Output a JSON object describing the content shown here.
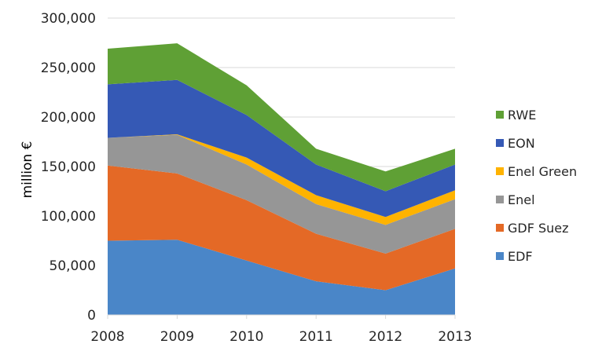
{
  "chart_data": {
    "type": "area",
    "stacked": true,
    "title": "",
    "xlabel": "",
    "ylabel": "million €",
    "categories": [
      "2008",
      "2009",
      "2010",
      "2011",
      "2012",
      "2013"
    ],
    "ylim": [
      0,
      300000
    ],
    "yticks": [
      0,
      50000,
      100000,
      150000,
      200000,
      250000,
      300000
    ],
    "ytick_labels": [
      "0",
      "50,000",
      "100,000",
      "150,000",
      "200,000",
      "250,000",
      "300,000"
    ],
    "grid": true,
    "legend_position": "right",
    "series": [
      {
        "name": "EDF",
        "color": "#4A86C8",
        "values": [
          75000,
          76000,
          55000,
          34000,
          25000,
          47000
        ]
      },
      {
        "name": "GDF Suez",
        "color": "#E46926",
        "values": [
          76000,
          67000,
          61000,
          48000,
          37000,
          40000
        ]
      },
      {
        "name": "Enel",
        "color": "#969696",
        "values": [
          28000,
          39000,
          36000,
          30000,
          29000,
          30000
        ]
      },
      {
        "name": "Enel Green",
        "color": "#FFB300",
        "values": [
          0,
          500,
          7000,
          9000,
          8000,
          9000
        ]
      },
      {
        "name": "EON",
        "color": "#3559B5",
        "values": [
          54000,
          55000,
          43000,
          31000,
          26000,
          26000
        ]
      },
      {
        "name": "RWE",
        "color": "#5FA035",
        "values": [
          36000,
          37000,
          30000,
          16000,
          20000,
          16000
        ]
      }
    ]
  }
}
